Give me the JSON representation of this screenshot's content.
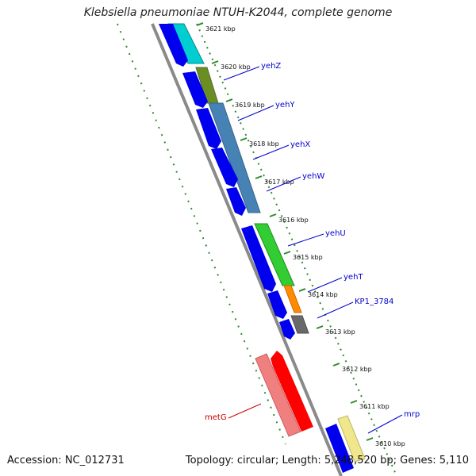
{
  "title": "Klebsiella pneumoniae NTUH-K2044, complete genome",
  "accession": "Accession: NC_012731",
  "summary": "Topology: circular; Length: 5,248,520 bp; Genes: 5,110",
  "colors": {
    "backbone": "#8a8a8a",
    "forward_arrow": "#0000ee",
    "ticks": "#2e8b2e",
    "gene_label": "#0000cc",
    "metG_label": "#cc0000"
  },
  "ticks": [
    {
      "label": "3621 kbp"
    },
    {
      "label": "3620 kbp"
    },
    {
      "label": "3619 kbp"
    },
    {
      "label": "3618 kbp"
    },
    {
      "label": "3617 kbp"
    },
    {
      "label": "3616 kbp"
    },
    {
      "label": "3615 kbp"
    },
    {
      "label": "3614 kbp"
    },
    {
      "label": "3613 kbp"
    },
    {
      "label": "3612 kbp"
    },
    {
      "label": "3611 kbp"
    },
    {
      "label": "3610 kbp"
    }
  ],
  "genes": [
    {
      "name": "yehZ",
      "color": "#6b8e23"
    },
    {
      "name": "yehY",
      "color": "#4682b4"
    },
    {
      "name": "yehX",
      "color": "#4682b4"
    },
    {
      "name": "yehW",
      "color": "#4682b4"
    },
    {
      "name": "yehU",
      "color": "#32cd32"
    },
    {
      "name": "yehT",
      "color": "#ff8c00"
    },
    {
      "name": "KP1_3784",
      "color": "#696969"
    },
    {
      "name": "metG",
      "color": "#ff0000"
    },
    {
      "name": "mrp",
      "color": "#f0e68c"
    }
  ]
}
